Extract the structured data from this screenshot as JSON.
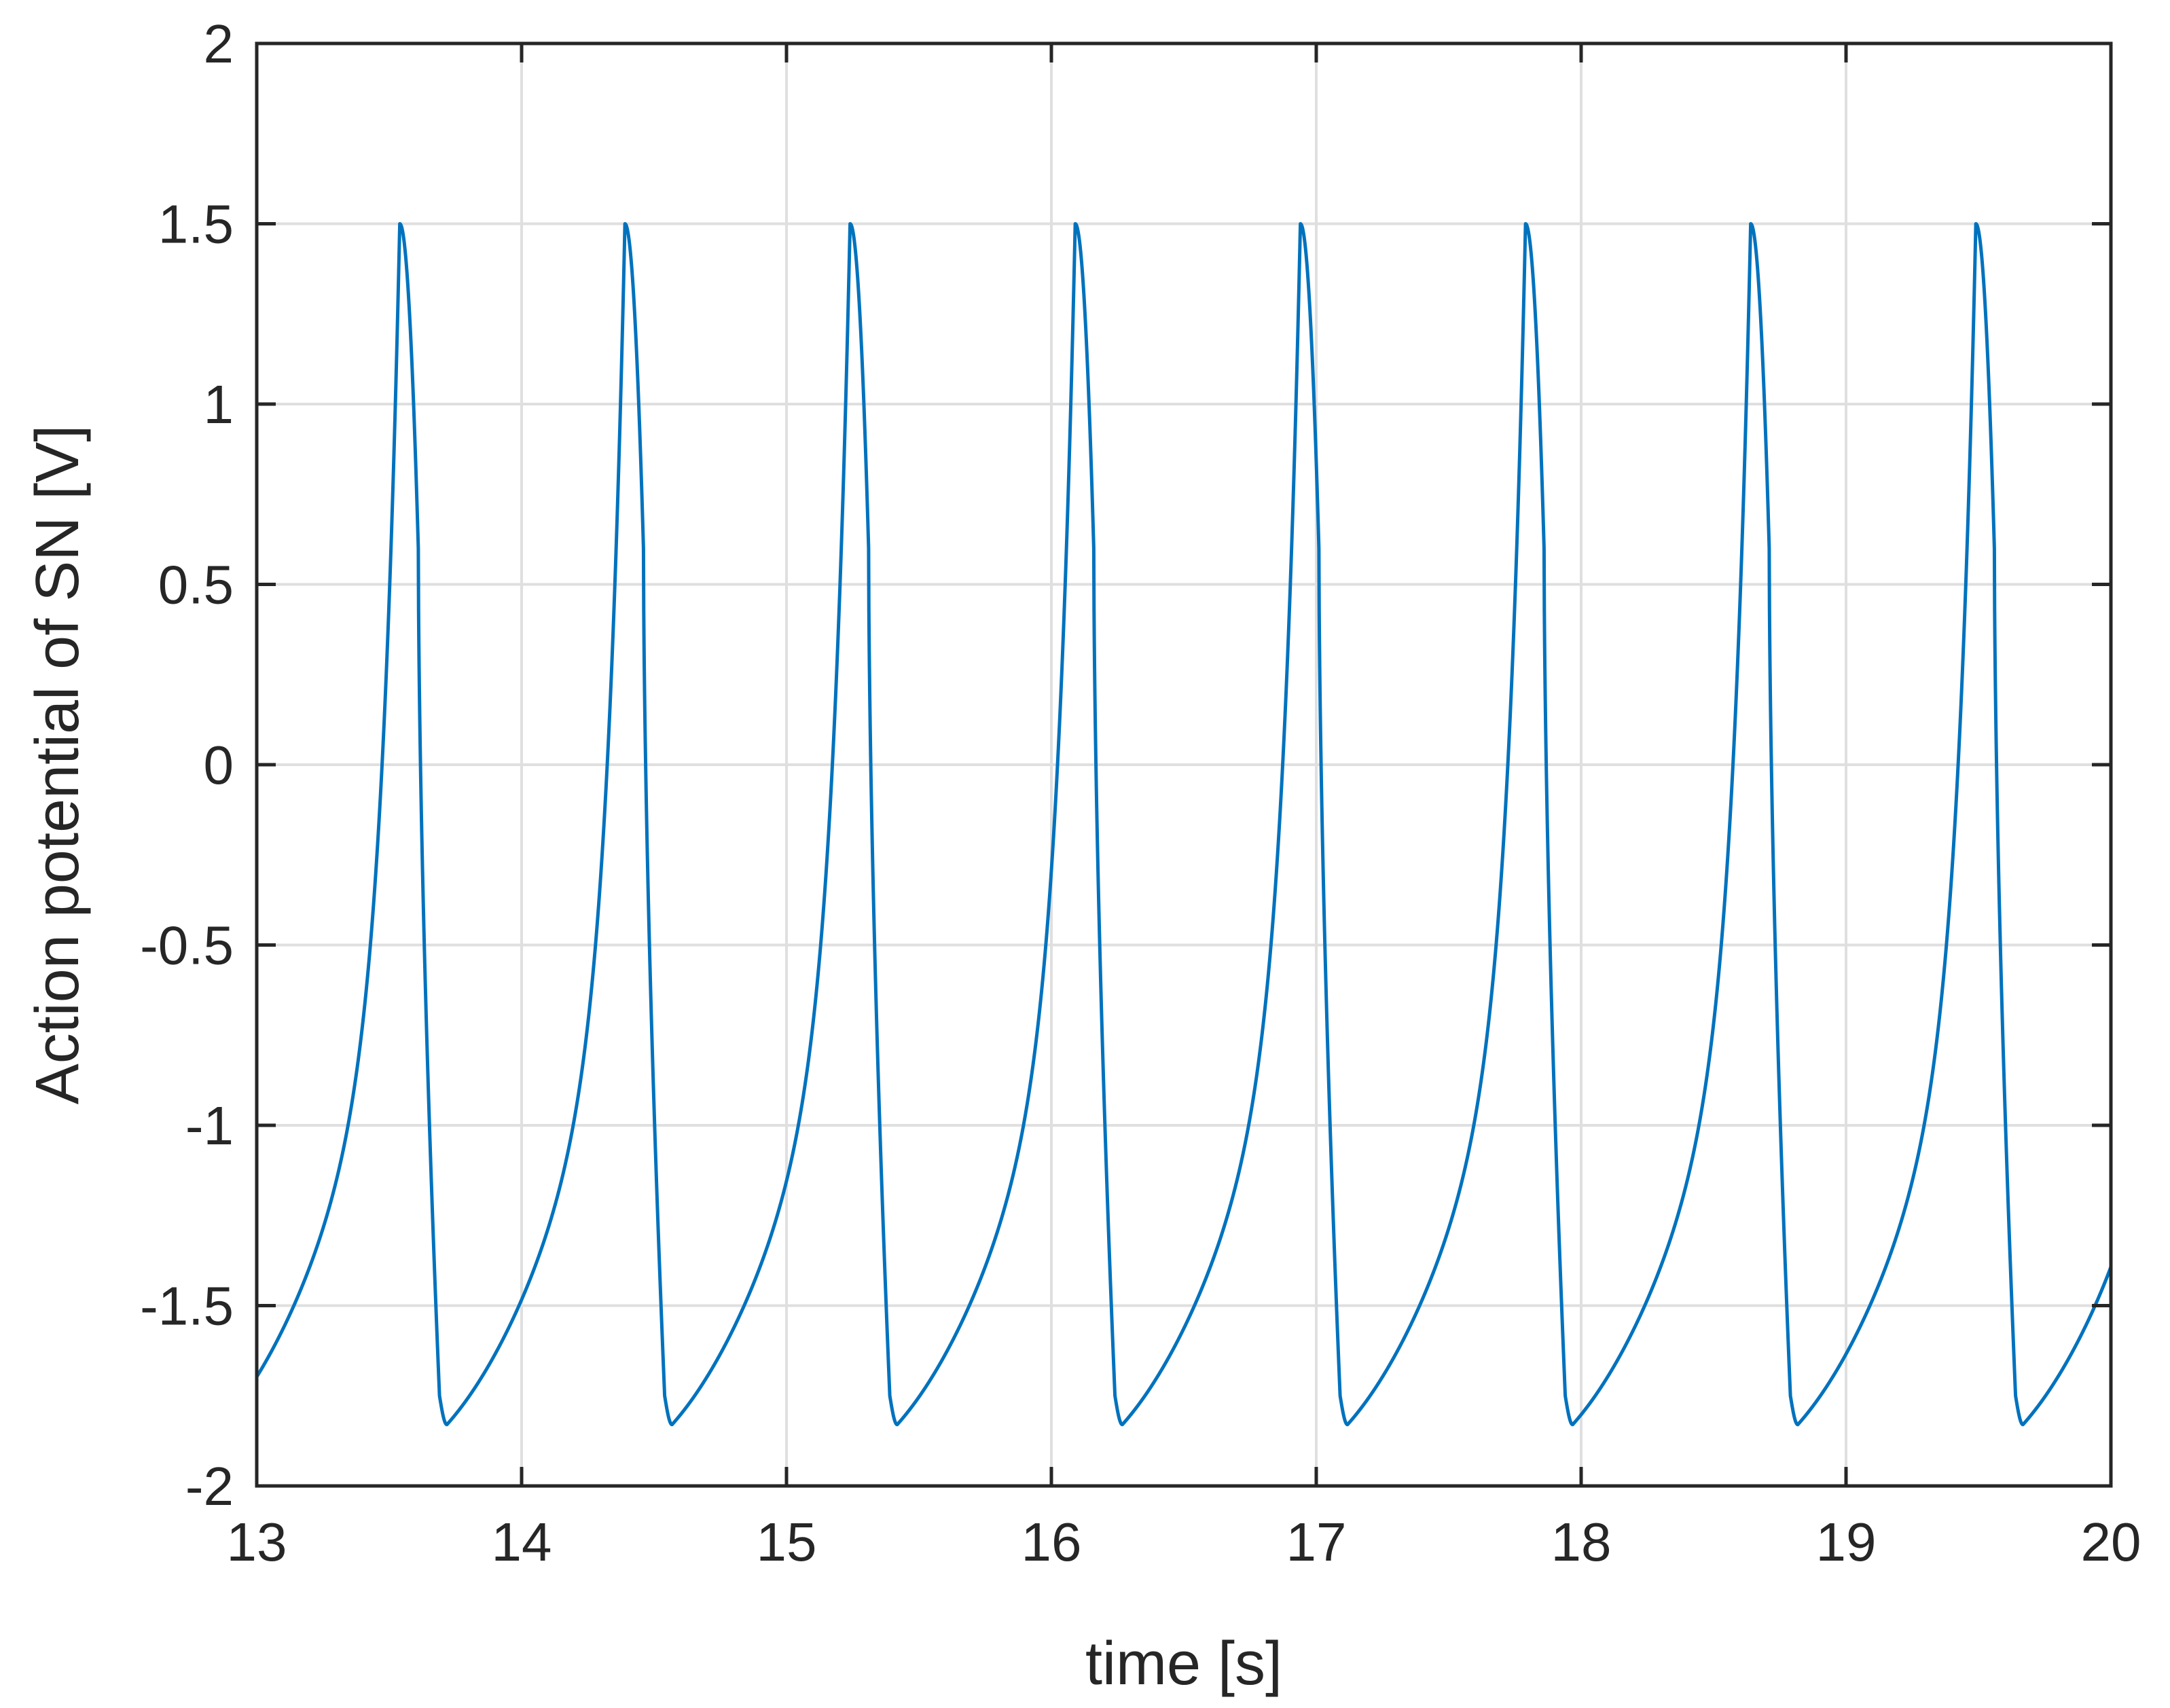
{
  "chart_data": {
    "type": "line",
    "title": "",
    "xlabel": "time [s]",
    "ylabel": "Action potential of SN [V]",
    "xlim": [
      13,
      20
    ],
    "ylim": [
      -2,
      2
    ],
    "xticks": [
      13,
      14,
      15,
      16,
      17,
      18,
      19,
      20
    ],
    "yticks": [
      -2,
      -1.5,
      -1,
      -0.5,
      0,
      0.5,
      1,
      1.5,
      2
    ],
    "xtick_labels": [
      "13",
      "14",
      "15",
      "16",
      "17",
      "18",
      "19",
      "20"
    ],
    "ytick_labels": [
      "-2",
      "-1.5",
      "-1",
      "-0.5",
      "0",
      "0.5",
      "1",
      "1.5",
      "2"
    ],
    "grid": true,
    "series": [
      {
        "name": "action potential",
        "color": "#0072BD",
        "period_s": 0.85,
        "spike_times": [
          13.54,
          14.39,
          15.24,
          16.09,
          16.94,
          17.79,
          18.64,
          19.49
        ],
        "peak_value": 1.5,
        "minimum_value": -1.83,
        "x_start": 13.0,
        "y_start": -1.72,
        "x_end": 20.0,
        "y_end": -1.52
      }
    ]
  },
  "colors": {
    "line": "#0072BD",
    "grid": "#dfdfdf",
    "axis": "#262626",
    "background": "#ffffff"
  }
}
